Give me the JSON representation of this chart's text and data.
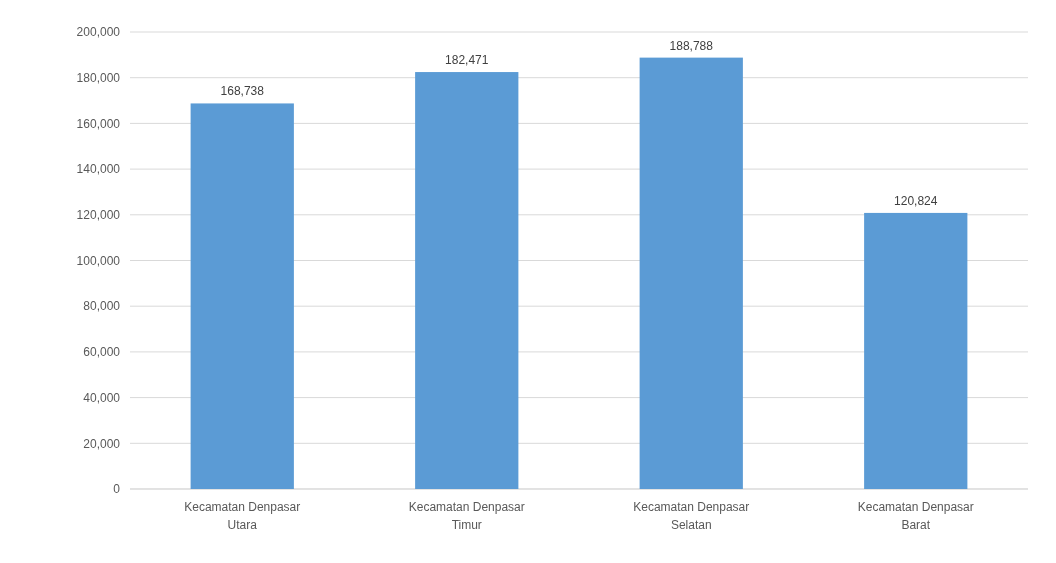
{
  "chart_data": {
    "type": "bar",
    "categories": [
      "Kecamatan Denpasar Utara",
      "Kecamatan Denpasar Timur",
      "Kecamatan Denpasar Selatan",
      "Kecamatan Denpasar Barat"
    ],
    "values": [
      168738,
      182471,
      188788,
      120824
    ],
    "value_labels": [
      "168,738",
      "182,471",
      "188,788",
      "120,824"
    ],
    "color": "#5b9bd5",
    "ylim": [
      0,
      200000
    ],
    "yticks": [
      0,
      {
        "value": 20000,
        "label": "20,000"
      },
      {
        "value": 40000,
        "label": "40,000"
      },
      {
        "value": 60000,
        "label": "60,000"
      },
      {
        "value": 80000,
        "label": "80,000"
      },
      {
        "value": 100000,
        "label": "100,000"
      },
      {
        "value": 120000,
        "label": "120,000"
      },
      {
        "value": 140000,
        "label": "140,000"
      },
      {
        "value": 160000,
        "label": "160,000"
      },
      {
        "value": 180000,
        "label": "180,000"
      },
      {
        "value": 200000,
        "label": "200,000"
      }
    ],
    "grid": "y"
  }
}
